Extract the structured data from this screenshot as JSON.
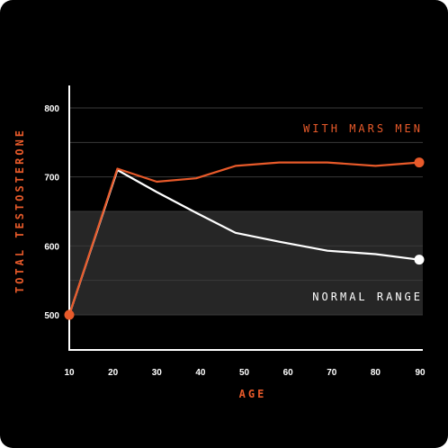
{
  "colors": {
    "background": "#000000",
    "accent": "#e85a2a",
    "line_white": "#ffffff",
    "normal_band": "#262626",
    "grid": "#3a3a3a"
  },
  "chart_data": {
    "type": "line",
    "xlabel": "AGE",
    "ylabel": "TOTAL TESTOSTERONE",
    "xlim": [
      10,
      90
    ],
    "ylim": [
      485,
      800
    ],
    "x_ticks": [
      10,
      20,
      30,
      40,
      50,
      60,
      70,
      80,
      90
    ],
    "y_ticks": [
      500,
      600,
      700,
      800
    ],
    "grid": "horizontal",
    "shaded_band": {
      "label": "NORMAL RANGE",
      "y_range": [
        500,
        650
      ]
    },
    "series": [
      {
        "name": "WITH MARS MEN",
        "color": "#e85a2a",
        "x": [
          10,
          21,
          30,
          39,
          48,
          58,
          69,
          80,
          90
        ],
        "values": [
          500,
          712,
          693,
          698,
          716,
          721,
          721,
          716,
          721
        ]
      },
      {
        "name": "",
        "color": "#ffffff",
        "x": [
          10,
          21,
          30,
          39,
          48,
          58,
          69,
          80,
          90
        ],
        "values": [
          500,
          710,
          678,
          648,
          619,
          606,
          593,
          588,
          580
        ]
      }
    ]
  }
}
